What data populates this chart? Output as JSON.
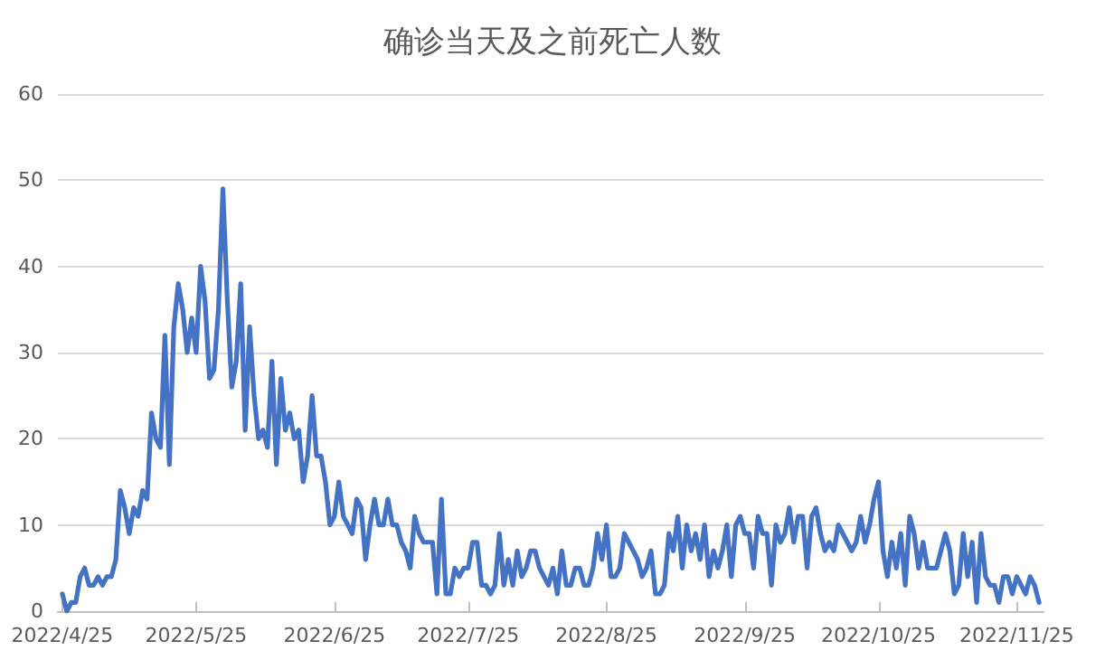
{
  "chart_data": {
    "type": "line",
    "title": "确诊当天及之前死亡人数",
    "x": [
      "2022-04-25",
      "2022-04-26",
      "2022-04-27",
      "2022-04-28",
      "2022-04-29",
      "2022-04-30",
      "2022-05-01",
      "2022-05-02",
      "2022-05-03",
      "2022-05-04",
      "2022-05-05",
      "2022-05-06",
      "2022-05-07",
      "2022-05-08",
      "2022-05-09",
      "2022-05-10",
      "2022-05-11",
      "2022-05-12",
      "2022-05-13",
      "2022-05-14",
      "2022-05-15",
      "2022-05-16",
      "2022-05-17",
      "2022-05-18",
      "2022-05-19",
      "2022-05-20",
      "2022-05-21",
      "2022-05-22",
      "2022-05-23",
      "2022-05-24",
      "2022-05-25",
      "2022-05-26",
      "2022-05-27",
      "2022-05-28",
      "2022-05-29",
      "2022-05-30",
      "2022-05-31",
      "2022-06-01",
      "2022-06-02",
      "2022-06-03",
      "2022-06-04",
      "2022-06-05",
      "2022-06-06",
      "2022-06-07",
      "2022-06-08",
      "2022-06-09",
      "2022-06-10",
      "2022-06-11",
      "2022-06-12",
      "2022-06-13",
      "2022-06-14",
      "2022-06-15",
      "2022-06-16",
      "2022-06-17",
      "2022-06-18",
      "2022-06-19",
      "2022-06-20",
      "2022-06-21",
      "2022-06-22",
      "2022-06-23",
      "2022-06-24",
      "2022-06-25",
      "2022-06-26",
      "2022-06-27",
      "2022-06-28",
      "2022-06-29",
      "2022-06-30",
      "2022-07-01",
      "2022-07-02",
      "2022-07-03",
      "2022-07-04",
      "2022-07-05",
      "2022-07-06",
      "2022-07-07",
      "2022-07-08",
      "2022-07-09",
      "2022-07-10",
      "2022-07-11",
      "2022-07-12",
      "2022-07-13",
      "2022-07-14",
      "2022-07-15",
      "2022-07-16",
      "2022-07-17",
      "2022-07-18",
      "2022-07-19",
      "2022-07-20",
      "2022-07-21",
      "2022-07-22",
      "2022-07-23",
      "2022-07-24",
      "2022-07-25",
      "2022-07-26",
      "2022-07-27",
      "2022-07-28",
      "2022-07-29",
      "2022-07-30",
      "2022-07-31",
      "2022-08-01",
      "2022-08-02",
      "2022-08-03",
      "2022-08-04",
      "2022-08-05",
      "2022-08-06",
      "2022-08-07",
      "2022-08-08",
      "2022-08-09",
      "2022-08-10",
      "2022-08-11",
      "2022-08-12",
      "2022-08-13",
      "2022-08-14",
      "2022-08-15",
      "2022-08-16",
      "2022-08-17",
      "2022-08-18",
      "2022-08-19",
      "2022-08-20",
      "2022-08-21",
      "2022-08-22",
      "2022-08-23",
      "2022-08-24",
      "2022-08-25",
      "2022-08-26",
      "2022-08-27",
      "2022-08-28",
      "2022-08-29",
      "2022-08-30",
      "2022-08-31",
      "2022-09-01",
      "2022-09-02",
      "2022-09-03",
      "2022-09-04",
      "2022-09-05",
      "2022-09-06",
      "2022-09-07",
      "2022-09-08",
      "2022-09-09",
      "2022-09-10",
      "2022-09-11",
      "2022-09-12",
      "2022-09-13",
      "2022-09-14",
      "2022-09-15",
      "2022-09-16",
      "2022-09-17",
      "2022-09-18",
      "2022-09-19",
      "2022-09-20",
      "2022-09-21",
      "2022-09-22",
      "2022-09-23",
      "2022-09-24",
      "2022-09-25",
      "2022-09-26",
      "2022-09-27",
      "2022-09-28",
      "2022-09-29",
      "2022-09-30",
      "2022-10-01",
      "2022-10-02",
      "2022-10-03",
      "2022-10-04",
      "2022-10-05",
      "2022-10-06",
      "2022-10-07",
      "2022-10-08",
      "2022-10-09",
      "2022-10-10",
      "2022-10-11",
      "2022-10-12",
      "2022-10-13",
      "2022-10-14",
      "2022-10-15",
      "2022-10-16",
      "2022-10-17",
      "2022-10-18",
      "2022-10-19",
      "2022-10-20",
      "2022-10-21",
      "2022-10-22",
      "2022-10-23",
      "2022-10-24",
      "2022-10-25",
      "2022-10-26",
      "2022-10-27",
      "2022-10-28",
      "2022-10-29",
      "2022-10-30",
      "2022-10-31",
      "2022-11-01",
      "2022-11-02",
      "2022-11-03",
      "2022-11-04",
      "2022-11-05",
      "2022-11-06",
      "2022-11-07",
      "2022-11-08",
      "2022-11-09",
      "2022-11-10",
      "2022-11-11",
      "2022-11-12",
      "2022-11-13",
      "2022-11-14",
      "2022-11-15",
      "2022-11-16",
      "2022-11-17",
      "2022-11-18",
      "2022-11-19",
      "2022-11-20",
      "2022-11-21",
      "2022-11-22",
      "2022-11-23",
      "2022-11-24",
      "2022-11-25",
      "2022-11-26",
      "2022-11-27",
      "2022-11-28",
      "2022-11-29",
      "2022-11-30"
    ],
    "series": [
      {
        "color": "#4472c4",
        "values": [
          2,
          0,
          1,
          1,
          4,
          5,
          3,
          3,
          4,
          3,
          4,
          4,
          6,
          14,
          12,
          9,
          12,
          11,
          14,
          13,
          23,
          20,
          19,
          32,
          17,
          33,
          38,
          35,
          30,
          34,
          30,
          40,
          36,
          27,
          28,
          35,
          49,
          36,
          26,
          29,
          38,
          21,
          33,
          25,
          20,
          21,
          19,
          29,
          17,
          27,
          21,
          23,
          20,
          21,
          15,
          18,
          25,
          18,
          18,
          15,
          10,
          11,
          15,
          11,
          10,
          9,
          13,
          12,
          6,
          10,
          13,
          10,
          10,
          13,
          10,
          10,
          8,
          7,
          5,
          11,
          9,
          8,
          8,
          8,
          2,
          13,
          2,
          2,
          5,
          4,
          5,
          5,
          8,
          8,
          3,
          3,
          2,
          3,
          9,
          3,
          6,
          3,
          7,
          4,
          5,
          7,
          7,
          5,
          4,
          3,
          5,
          2,
          7,
          3,
          3,
          5,
          5,
          3,
          3,
          5,
          9,
          6,
          10,
          4,
          4,
          5,
          9,
          8,
          7,
          6,
          4,
          5,
          7,
          2,
          2,
          3,
          9,
          7,
          11,
          5,
          10,
          7,
          9,
          6,
          10,
          4,
          7,
          5,
          7,
          10,
          4,
          10,
          11,
          9,
          9,
          5,
          11,
          9,
          9,
          3,
          10,
          8,
          9,
          12,
          8,
          11,
          11,
          5,
          11,
          12,
          9,
          7,
          8,
          7,
          10,
          9,
          8,
          7,
          8,
          11,
          8,
          10,
          13,
          15,
          7,
          4,
          8,
          5,
          9,
          3,
          11,
          9,
          5,
          8,
          5,
          5,
          5,
          7,
          9,
          7,
          2,
          3,
          9,
          4,
          8,
          1,
          9,
          4,
          3,
          3,
          1,
          4,
          4,
          2,
          4,
          3,
          2,
          4,
          3,
          1
        ]
      }
    ],
    "xlim": [
      "2022-04-24",
      "2022-12-01"
    ],
    "xticks": [
      {
        "value": "2022-04-25",
        "label": "2022/4/25"
      },
      {
        "value": "2022-05-25",
        "label": "2022/5/25"
      },
      {
        "value": "2022-06-25",
        "label": "2022/6/25"
      },
      {
        "value": "2022-07-25",
        "label": "2022/7/25"
      },
      {
        "value": "2022-08-25",
        "label": "2022/8/25"
      },
      {
        "value": "2022-09-25",
        "label": "2022/9/25"
      },
      {
        "value": "2022-10-25",
        "label": "2022/10/25"
      },
      {
        "value": "2022-11-25",
        "label": "2022/11/25"
      }
    ],
    "ylim": [
      0,
      60
    ],
    "yticks": [
      0,
      10,
      20,
      30,
      40,
      50,
      60
    ],
    "grid": "y",
    "marker": "none",
    "line_style": "solid"
  }
}
